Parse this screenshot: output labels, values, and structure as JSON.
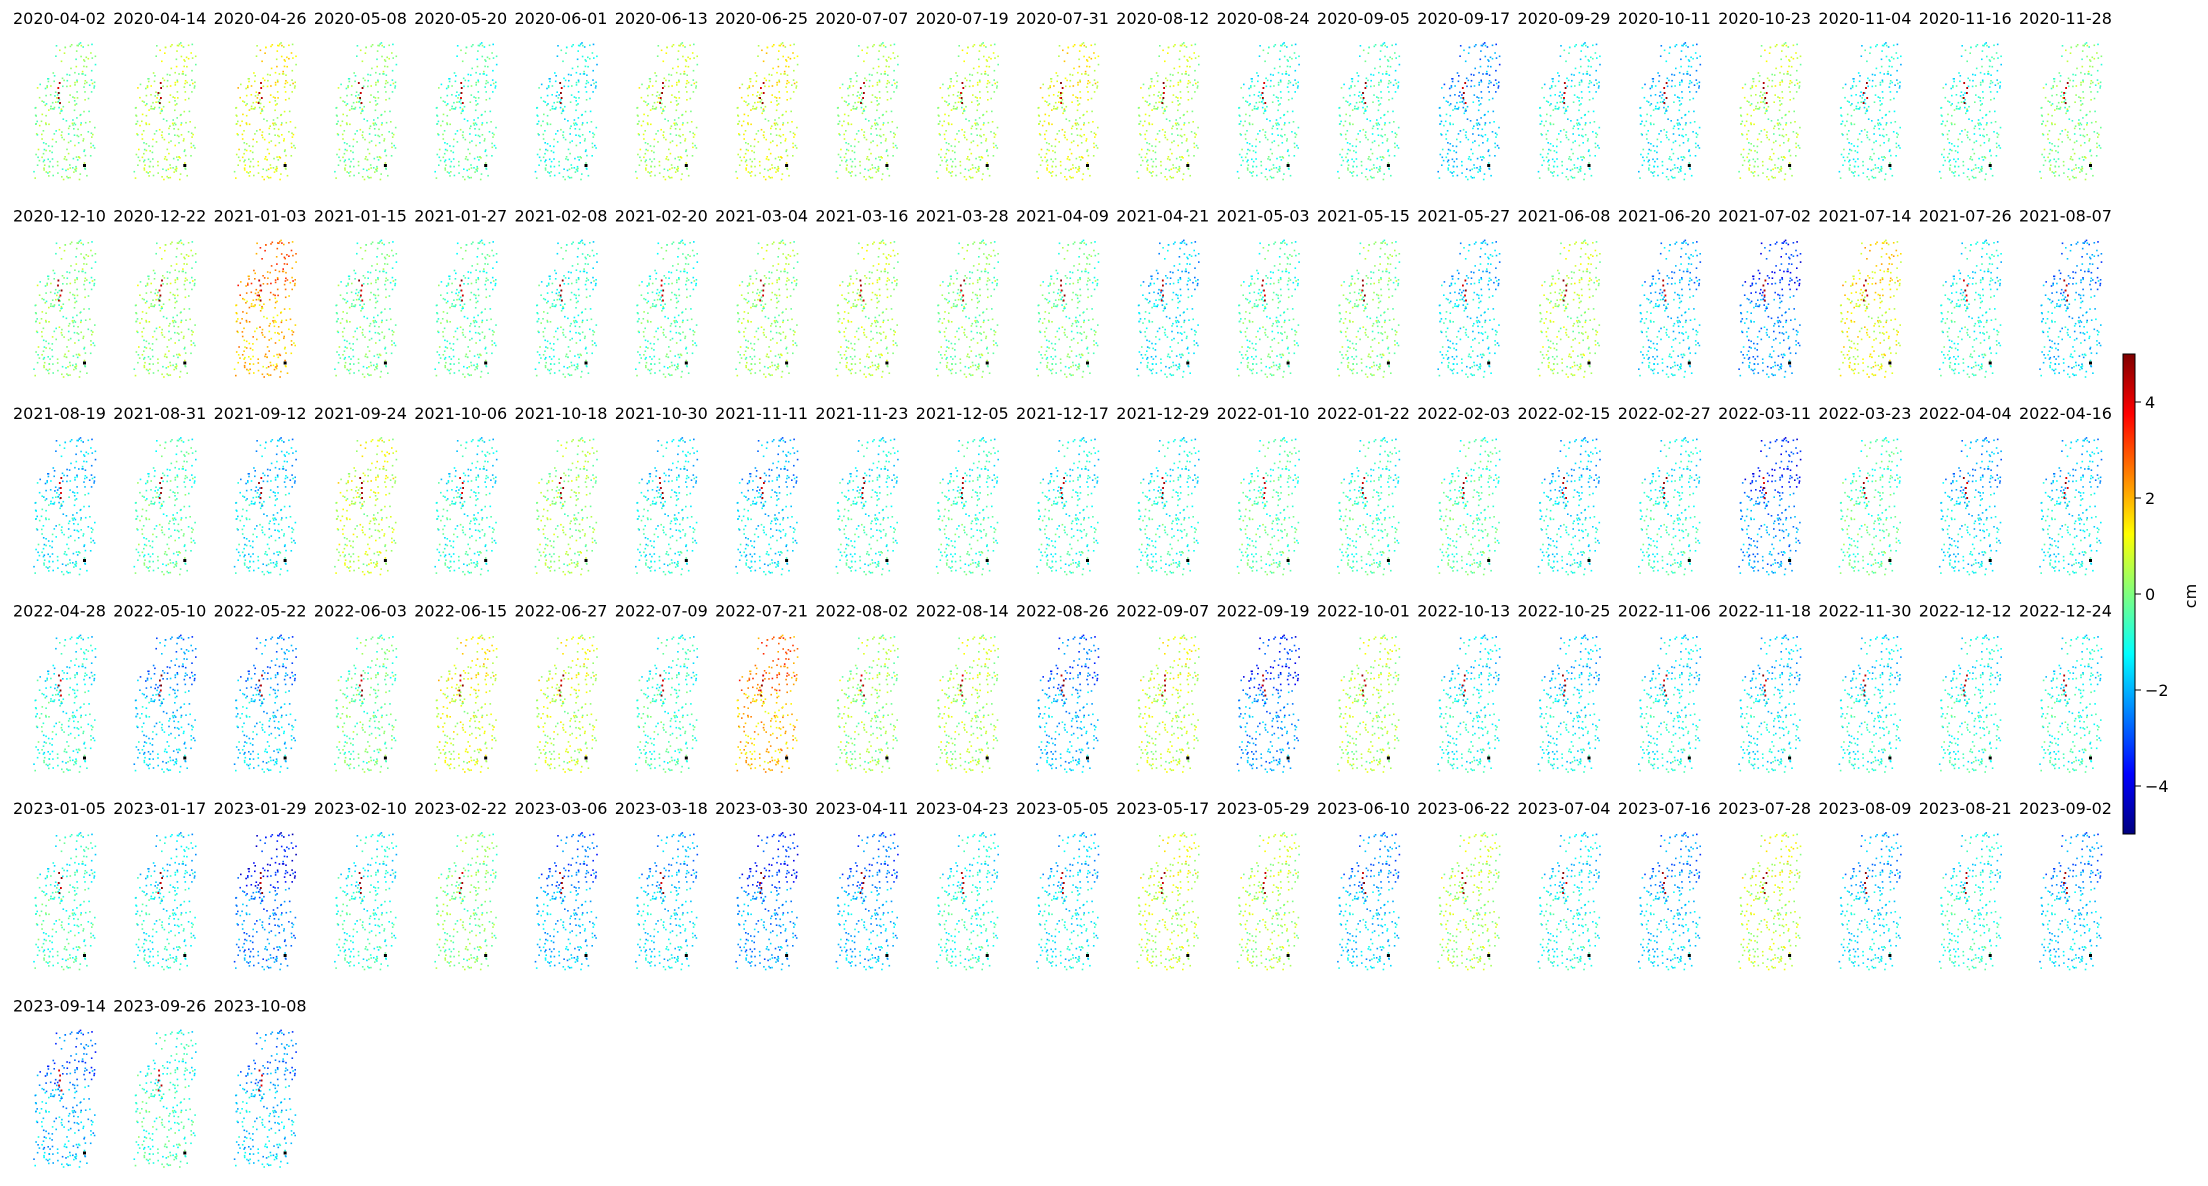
{
  "chart_data": {
    "type": "scatter",
    "description_kind": "small-multiples displacement map",
    "dates": [
      "2020-04-02",
      "2020-04-14",
      "2020-04-26",
      "2020-05-08",
      "2020-05-20",
      "2020-06-01",
      "2020-06-13",
      "2020-06-25",
      "2020-07-07",
      "2020-07-19",
      "2020-07-31",
      "2020-08-12",
      "2020-08-24",
      "2020-09-05",
      "2020-09-17",
      "2020-09-29",
      "2020-10-11",
      "2020-10-23",
      "2020-11-04",
      "2020-11-16",
      "2020-11-28",
      "2020-12-10",
      "2020-12-22",
      "2021-01-03",
      "2021-01-15",
      "2021-01-27",
      "2021-02-08",
      "2021-02-20",
      "2021-03-04",
      "2021-03-16",
      "2021-03-28",
      "2021-04-09",
      "2021-04-21",
      "2021-05-03",
      "2021-05-15",
      "2021-05-27",
      "2021-06-08",
      "2021-06-20",
      "2021-07-02",
      "2021-07-14",
      "2021-07-26",
      "2021-08-07",
      "2021-08-19",
      "2021-08-31",
      "2021-09-12",
      "2021-09-24",
      "2021-10-06",
      "2021-10-18",
      "2021-10-30",
      "2021-11-11",
      "2021-11-23",
      "2021-12-05",
      "2021-12-17",
      "2021-12-29",
      "2022-01-10",
      "2022-01-22",
      "2022-02-03",
      "2022-02-15",
      "2022-02-27",
      "2022-03-11",
      "2022-03-23",
      "2022-04-04",
      "2022-04-16",
      "2022-04-28",
      "2022-05-10",
      "2022-05-22",
      "2022-06-03",
      "2022-06-15",
      "2022-06-27",
      "2022-07-09",
      "2022-07-21",
      "2022-08-02",
      "2022-08-14",
      "2022-08-26",
      "2022-09-07",
      "2022-09-19",
      "2022-10-01",
      "2022-10-13",
      "2022-10-25",
      "2022-11-06",
      "2022-11-18",
      "2022-11-30",
      "2022-12-12",
      "2022-12-24",
      "2023-01-05",
      "2023-01-17",
      "2023-01-29",
      "2023-02-10",
      "2023-02-22",
      "2023-03-06",
      "2023-03-18",
      "2023-03-30",
      "2023-04-11",
      "2023-04-23",
      "2023-05-05",
      "2023-05-17",
      "2023-05-29",
      "2023-06-10",
      "2023-06-22",
      "2023-07-04",
      "2023-07-16",
      "2023-07-28",
      "2023-08-09",
      "2023-08-21",
      "2023-09-02",
      "2023-09-14",
      "2023-09-26",
      "2023-10-08"
    ],
    "panel_mean_displacement": [
      0.0,
      0.4,
      0.8,
      0.0,
      -0.4,
      -0.8,
      0.4,
      0.8,
      0.2,
      0.4,
      0.8,
      0.4,
      -0.6,
      -0.5,
      -1.6,
      -0.8,
      -1.2,
      0.4,
      -0.8,
      -0.6,
      0.0,
      0.0,
      0.2,
      1.8,
      -0.2,
      -0.4,
      -0.6,
      -0.4,
      0.2,
      0.4,
      0.0,
      -0.2,
      -1.2,
      -0.4,
      0.0,
      -1.2,
      0.4,
      -1.4,
      -2.2,
      1.0,
      -0.8,
      -1.6,
      -1.2,
      -0.4,
      -1.2,
      0.6,
      -0.8,
      0.2,
      -1.0,
      -1.4,
      -0.8,
      -0.6,
      -0.8,
      -0.8,
      -0.4,
      -0.6,
      -0.4,
      -1.2,
      -0.8,
      -2.2,
      -0.4,
      -1.4,
      -1.2,
      -0.8,
      -1.6,
      -1.6,
      -0.2,
      0.8,
      0.6,
      -0.6,
      1.8,
      0.2,
      0.4,
      -1.8,
      0.6,
      -2.2,
      0.4,
      -1.0,
      -1.2,
      -1.0,
      -1.2,
      -1.0,
      -0.8,
      -0.8,
      -0.6,
      -1.0,
      -2.4,
      -0.8,
      0.0,
      -1.8,
      -1.4,
      -2.2,
      -1.8,
      -0.8,
      -1.2,
      0.6,
      0.4,
      -1.6,
      0.4,
      -1.0,
      -1.6,
      0.6,
      -1.4,
      -0.8,
      -1.6,
      -1.8,
      -0.6,
      -1.6
    ],
    "colorbar": {
      "colormap": "jet",
      "vmin": -5,
      "vmax": 5,
      "ticks": [
        -4,
        -2,
        0,
        2,
        4
      ],
      "tick_labels": [
        "−4",
        "−2",
        "0",
        "2",
        "4"
      ],
      "label": "cm"
    },
    "grid": false,
    "axes_visible": false
  }
}
